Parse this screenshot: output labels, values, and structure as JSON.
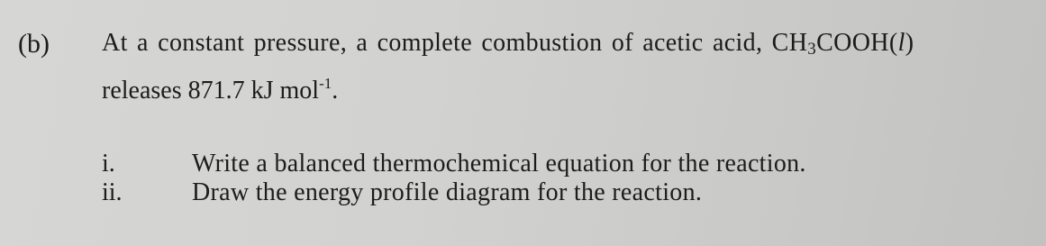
{
  "question": {
    "label": "(b)",
    "stem_line_1": {
      "text": "At a constant pressure, a complete combustion of acetic acid, CH",
      "subscript": "3",
      "after_subscript": "COOH(",
      "state": "l",
      "closing": ")"
    },
    "stem_line_2": {
      "text": "releases 871.7 kJ mol",
      "superscript": "-1",
      "closing": "."
    },
    "items": [
      {
        "number": "i.",
        "text": "Write a balanced thermochemical equation for the reaction."
      },
      {
        "number": "ii.",
        "text": "Draw the energy profile diagram for the reaction."
      }
    ]
  }
}
